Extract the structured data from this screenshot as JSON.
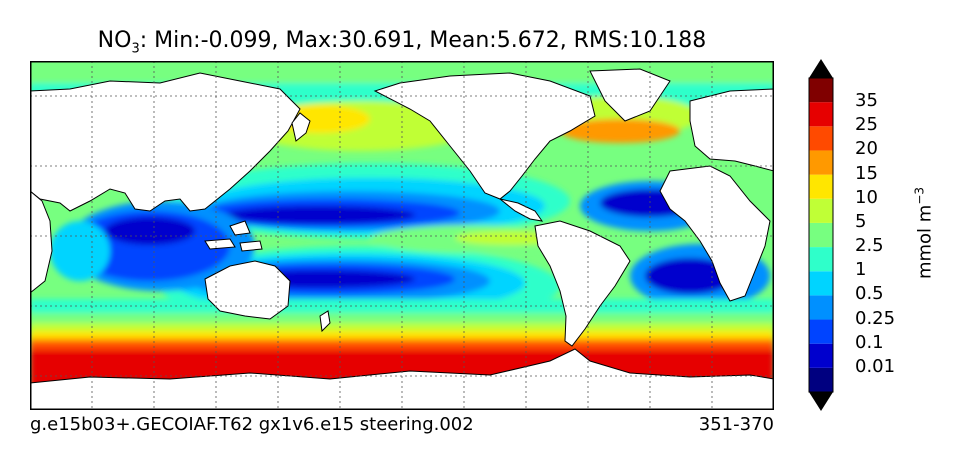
{
  "title": {
    "variable": "NO",
    "subscript": "3",
    "stats": ": Min:-0.099, Max:30.691, Mean:5.672, RMS:10.188"
  },
  "footer": {
    "case_name": "g.e15b03+.GECOIAF.T62 gx1v6.e15 steering.002",
    "years": "351-370"
  },
  "colorbar": {
    "unit_base": "mmol m",
    "unit_exp": "−3",
    "labels": [
      "35",
      "25",
      "20",
      "15",
      "10",
      "5",
      "2.5",
      "1",
      "0.5",
      "0.25",
      "0.1",
      "0.01"
    ],
    "colors": [
      "#000080",
      "#0000cd",
      "#0044ff",
      "#0090ff",
      "#00d4ff",
      "#2fffca",
      "#77ff80",
      "#c0ff36",
      "#ffe600",
      "#ff9900",
      "#ff4a00",
      "#e60000",
      "#800000"
    ],
    "extend": "both"
  },
  "map_colors": {
    "land": "#ffffff",
    "coast": "#000000",
    "grid": "#555555"
  }
}
